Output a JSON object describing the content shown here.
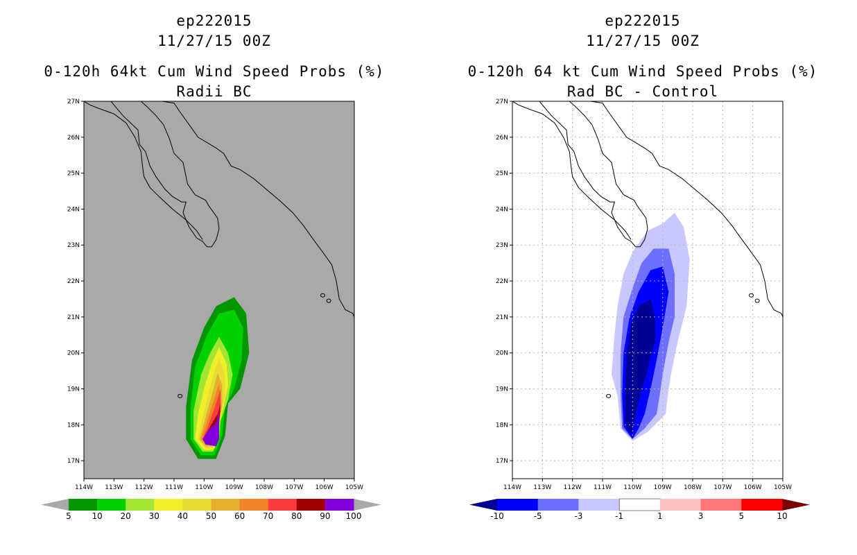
{
  "chart_data": [
    {
      "type": "contour",
      "storm_id": "ep222015",
      "datetime": "11/27/15 00Z",
      "title": "0-120h 64kt Cum Wind Speed Probs (%)",
      "subtitle": "Radii BC",
      "background": "#a9a9a9",
      "lon_range": [
        -114,
        -105
      ],
      "lat_range": [
        16.5,
        27
      ],
      "x_tick_labels": [
        "114W",
        "113W",
        "112W",
        "111W",
        "110W",
        "109W",
        "108W",
        "107W",
        "106W",
        "105W"
      ],
      "y_tick_labels": [
        "17N",
        "18N",
        "19N",
        "20N",
        "21N",
        "22N",
        "23N",
        "24N",
        "25N",
        "26N",
        "27N"
      ],
      "grid": false,
      "colorbar": {
        "labels": [
          "5",
          "10",
          "20",
          "30",
          "40",
          "50",
          "60",
          "70",
          "80",
          "90",
          "100"
        ],
        "colors": [
          "#009600",
          "#00d200",
          "#a0e632",
          "#f0f028",
          "#e6dc32",
          "#e6af2d",
          "#f08228",
          "#fa3c3c",
          "#a00000",
          "#8200dc"
        ],
        "under_color": "#a9a9a9",
        "over_color": "#a9a9a9"
      },
      "contours": [
        {
          "level": 5,
          "color": "#009600",
          "points": [
            [
              -110.2,
              17.05
            ],
            [
              -110.6,
              17.6
            ],
            [
              -110.6,
              18.5
            ],
            [
              -110.4,
              19.8
            ],
            [
              -110.0,
              20.7
            ],
            [
              -109.6,
              21.3
            ],
            [
              -109.0,
              21.55
            ],
            [
              -108.6,
              21.1
            ],
            [
              -108.5,
              20.0
            ],
            [
              -108.8,
              19.0
            ],
            [
              -109.2,
              18.6
            ],
            [
              -109.3,
              17.7
            ],
            [
              -109.6,
              17.05
            ]
          ]
        },
        {
          "level": 10,
          "color": "#00d200",
          "points": [
            [
              -110.1,
              17.15
            ],
            [
              -110.45,
              17.6
            ],
            [
              -110.45,
              18.5
            ],
            [
              -110.3,
              19.6
            ],
            [
              -109.9,
              20.5
            ],
            [
              -109.5,
              21.1
            ],
            [
              -109.0,
              21.2
            ],
            [
              -108.7,
              20.7
            ],
            [
              -108.75,
              19.8
            ],
            [
              -109.0,
              19.0
            ],
            [
              -109.3,
              18.5
            ],
            [
              -109.4,
              17.7
            ],
            [
              -109.65,
              17.15
            ]
          ]
        },
        {
          "level": 20,
          "color": "#a0e632",
          "points": [
            [
              -110.05,
              17.25
            ],
            [
              -110.35,
              17.6
            ],
            [
              -110.35,
              18.4
            ],
            [
              -110.1,
              19.4
            ],
            [
              -109.8,
              20.0
            ],
            [
              -109.5,
              20.45
            ],
            [
              -109.2,
              20.0
            ],
            [
              -109.05,
              19.4
            ],
            [
              -109.2,
              18.7
            ],
            [
              -109.45,
              18.1
            ],
            [
              -109.5,
              17.6
            ],
            [
              -109.7,
              17.25
            ]
          ]
        },
        {
          "level": 30,
          "color": "#f0f028",
          "points": [
            [
              -110.0,
              17.3
            ],
            [
              -110.3,
              17.6
            ],
            [
              -110.2,
              18.3
            ],
            [
              -110.0,
              19.0
            ],
            [
              -109.75,
              19.7
            ],
            [
              -109.5,
              20.15
            ],
            [
              -109.25,
              19.7
            ],
            [
              -109.2,
              19.1
            ],
            [
              -109.35,
              18.5
            ],
            [
              -109.5,
              18.0
            ],
            [
              -109.55,
              17.55
            ],
            [
              -109.7,
              17.3
            ]
          ]
        },
        {
          "level": 40,
          "color": "#e6dc32",
          "points": [
            [
              -109.95,
              17.35
            ],
            [
              -110.2,
              17.6
            ],
            [
              -110.05,
              18.2
            ],
            [
              -109.85,
              18.9
            ],
            [
              -109.65,
              19.5
            ],
            [
              -109.5,
              19.85
            ],
            [
              -109.3,
              19.4
            ],
            [
              -109.3,
              18.8
            ],
            [
              -109.45,
              18.3
            ],
            [
              -109.55,
              17.7
            ],
            [
              -109.7,
              17.35
            ]
          ]
        },
        {
          "level": 50,
          "color": "#e6af2d",
          "points": [
            [
              -109.95,
              17.4
            ],
            [
              -110.15,
              17.6
            ],
            [
              -109.95,
              18.2
            ],
            [
              -109.75,
              18.8
            ],
            [
              -109.55,
              19.45
            ],
            [
              -109.4,
              19.1
            ],
            [
              -109.4,
              18.5
            ],
            [
              -109.5,
              18.0
            ],
            [
              -109.6,
              17.55
            ],
            [
              -109.75,
              17.4
            ]
          ]
        },
        {
          "level": 60,
          "color": "#f08228",
          "points": [
            [
              -109.9,
              17.45
            ],
            [
              -110.1,
              17.6
            ],
            [
              -109.9,
              18.1
            ],
            [
              -109.65,
              18.75
            ],
            [
              -109.5,
              19.15
            ],
            [
              -109.45,
              18.6
            ],
            [
              -109.5,
              18.0
            ],
            [
              -109.6,
              17.55
            ]
          ]
        },
        {
          "level": 70,
          "color": "#fa3c3c",
          "points": [
            [
              -109.9,
              17.45
            ],
            [
              -110.05,
              17.6
            ],
            [
              -109.85,
              18.0
            ],
            [
              -109.6,
              18.6
            ],
            [
              -109.45,
              19.0
            ],
            [
              -109.45,
              18.4
            ],
            [
              -109.55,
              17.9
            ],
            [
              -109.6,
              17.5
            ]
          ]
        },
        {
          "level": 80,
          "color": "#a00000",
          "points": [
            [
              -109.9,
              17.5
            ],
            [
              -110.0,
              17.65
            ],
            [
              -109.8,
              17.95
            ],
            [
              -109.55,
              18.3
            ],
            [
              -109.45,
              18.6
            ],
            [
              -109.5,
              18.05
            ],
            [
              -109.55,
              17.6
            ]
          ]
        },
        {
          "level": 90,
          "color": "#8200dc",
          "points": [
            [
              -109.95,
              17.45
            ],
            [
              -109.6,
              17.4
            ],
            [
              -109.5,
              17.6
            ],
            [
              -109.5,
              18.35
            ],
            [
              -109.6,
              18.05
            ],
            [
              -109.9,
              17.8
            ],
            [
              -110.05,
              17.6
            ]
          ]
        }
      ]
    },
    {
      "type": "contour",
      "storm_id": "ep222015",
      "datetime": "11/27/15 00Z",
      "title": "0-120h 64 kt Cum Wind Speed Probs (%)",
      "subtitle": "Rad BC - Control",
      "background": "#ffffff",
      "lon_range": [
        -114,
        -105
      ],
      "lat_range": [
        16.5,
        27
      ],
      "x_tick_labels": [
        "114W",
        "113W",
        "112W",
        "111W",
        "110W",
        "109W",
        "108W",
        "107W",
        "106W",
        "105W"
      ],
      "y_tick_labels": [
        "17N",
        "18N",
        "19N",
        "20N",
        "21N",
        "22N",
        "23N",
        "24N",
        "25N",
        "26N",
        "27N"
      ],
      "grid": true,
      "colorbar": {
        "labels": [
          "-10",
          "-5",
          "-3",
          "-1",
          "1",
          "3",
          "5",
          "10"
        ],
        "colors": [
          "#0000ff",
          "#6e6eff",
          "#c8c8ff",
          "#ffffff",
          "#ffc0c0",
          "#ff7878",
          "#ff0000"
        ],
        "under_color": "#000096",
        "over_color": "#780000"
      },
      "contours": [
        {
          "level": -1,
          "color": "#c8c8ff",
          "points": [
            [
              -110.0,
              17.55
            ],
            [
              -110.4,
              17.9
            ],
            [
              -110.5,
              18.8
            ],
            [
              -110.7,
              19.4
            ],
            [
              -110.6,
              20.5
            ],
            [
              -110.5,
              21.3
            ],
            [
              -110.3,
              22.2
            ],
            [
              -110.0,
              22.8
            ],
            [
              -109.5,
              23.4
            ],
            [
              -109.0,
              23.6
            ],
            [
              -108.6,
              23.9
            ],
            [
              -108.3,
              23.5
            ],
            [
              -108.1,
              22.6
            ],
            [
              -108.2,
              21.3
            ],
            [
              -108.5,
              20.3
            ],
            [
              -108.7,
              19.5
            ],
            [
              -108.8,
              19.0
            ],
            [
              -108.9,
              18.3
            ],
            [
              -109.5,
              17.8
            ]
          ]
        },
        {
          "level": -3,
          "color": "#6e6eff",
          "points": [
            [
              -110.0,
              17.6
            ],
            [
              -110.35,
              17.9
            ],
            [
              -110.4,
              18.8
            ],
            [
              -110.4,
              20.0
            ],
            [
              -110.3,
              21.0
            ],
            [
              -110.0,
              21.8
            ],
            [
              -109.7,
              22.5
            ],
            [
              -109.3,
              22.9
            ],
            [
              -108.8,
              22.9
            ],
            [
              -108.6,
              22.2
            ],
            [
              -108.6,
              21.0
            ],
            [
              -108.8,
              20.3
            ],
            [
              -109.0,
              19.4
            ],
            [
              -109.1,
              18.8
            ],
            [
              -109.2,
              18.3
            ],
            [
              -109.6,
              17.9
            ]
          ]
        },
        {
          "level": -5,
          "color": "#0000ff",
          "points": [
            [
              -110.0,
              17.6
            ],
            [
              -110.3,
              17.95
            ],
            [
              -110.35,
              18.8
            ],
            [
              -110.3,
              20.0
            ],
            [
              -110.1,
              21.0
            ],
            [
              -109.8,
              21.7
            ],
            [
              -109.4,
              22.3
            ],
            [
              -109.0,
              22.4
            ],
            [
              -108.8,
              21.7
            ],
            [
              -109.0,
              20.7
            ],
            [
              -109.2,
              19.8
            ],
            [
              -109.4,
              19.0
            ],
            [
              -109.6,
              18.3
            ],
            [
              -109.8,
              17.9
            ]
          ]
        },
        {
          "level": -10,
          "color": "#000096",
          "points": [
            [
              -110.05,
              17.7
            ],
            [
              -110.25,
              18.0
            ],
            [
              -110.25,
              18.8
            ],
            [
              -110.2,
              20.0
            ],
            [
              -110.05,
              20.8
            ],
            [
              -109.8,
              21.3
            ],
            [
              -109.4,
              21.5
            ],
            [
              -109.25,
              21.0
            ],
            [
              -109.25,
              20.3
            ],
            [
              -109.4,
              19.9
            ],
            [
              -109.5,
              19.5
            ],
            [
              -109.7,
              19.0
            ],
            [
              -109.9,
              18.3
            ]
          ]
        }
      ]
    }
  ],
  "coastline": {
    "baja_east": [
      [
        -113.1,
        27.0
      ],
      [
        -112.9,
        26.8
      ],
      [
        -112.7,
        26.6
      ],
      [
        -112.2,
        26.2
      ],
      [
        -112.15,
        25.8
      ],
      [
        -111.95,
        25.6
      ],
      [
        -111.8,
        25.2
      ],
      [
        -111.6,
        24.9
      ],
      [
        -111.3,
        24.55
      ],
      [
        -111.05,
        24.35
      ],
      [
        -110.75,
        24.2
      ],
      [
        -110.6,
        24.2
      ],
      [
        -110.7,
        23.9
      ],
      [
        -110.5,
        23.5
      ],
      [
        -110.25,
        23.2
      ],
      [
        -110.05,
        23.1
      ],
      [
        -109.9,
        22.95
      ],
      [
        -109.75,
        22.95
      ],
      [
        -109.6,
        23.15
      ],
      [
        -109.5,
        23.45
      ],
      [
        -109.55,
        23.75
      ],
      [
        -109.85,
        24.1
      ],
      [
        -109.95,
        24.25
      ],
      [
        -110.3,
        24.4
      ],
      [
        -110.55,
        24.7
      ],
      [
        -110.7,
        25.3
      ],
      [
        -111.0,
        25.55
      ],
      [
        -111.15,
        25.95
      ],
      [
        -111.35,
        26.35
      ],
      [
        -111.6,
        26.6
      ],
      [
        -111.9,
        26.85
      ],
      [
        -112.1,
        27.0
      ]
    ],
    "baja_west": [
      [
        -114.0,
        27.0
      ],
      [
        -113.8,
        26.9
      ],
      [
        -113.5,
        26.8
      ],
      [
        -113.0,
        26.65
      ],
      [
        -112.6,
        26.4
      ],
      [
        -112.3,
        26.0
      ],
      [
        -112.1,
        25.6
      ],
      [
        -112.05,
        25.2
      ],
      [
        -112.0,
        24.9
      ],
      [
        -111.8,
        24.6
      ],
      [
        -111.5,
        24.35
      ],
      [
        -111.05,
        24.0
      ],
      [
        -110.6,
        23.7
      ],
      [
        -110.25,
        23.4
      ],
      [
        -110.05,
        23.15
      ]
    ],
    "mainland": [
      [
        -111.4,
        27.0
      ],
      [
        -111.0,
        26.95
      ],
      [
        -110.8,
        26.7
      ],
      [
        -110.5,
        26.35
      ],
      [
        -110.2,
        26.0
      ],
      [
        -109.6,
        25.7
      ],
      [
        -109.35,
        25.55
      ],
      [
        -109.1,
        25.2
      ],
      [
        -108.8,
        25.1
      ],
      [
        -108.35,
        24.85
      ],
      [
        -108.0,
        24.6
      ],
      [
        -107.5,
        24.25
      ],
      [
        -107.05,
        23.9
      ],
      [
        -106.7,
        23.55
      ],
      [
        -106.4,
        23.2
      ],
      [
        -106.05,
        22.8
      ],
      [
        -105.75,
        22.45
      ],
      [
        -105.6,
        22.0
      ],
      [
        -105.5,
        21.5
      ],
      [
        -105.3,
        21.2
      ],
      [
        -105.05,
        21.1
      ],
      [
        -105.0,
        21.0
      ]
    ]
  }
}
